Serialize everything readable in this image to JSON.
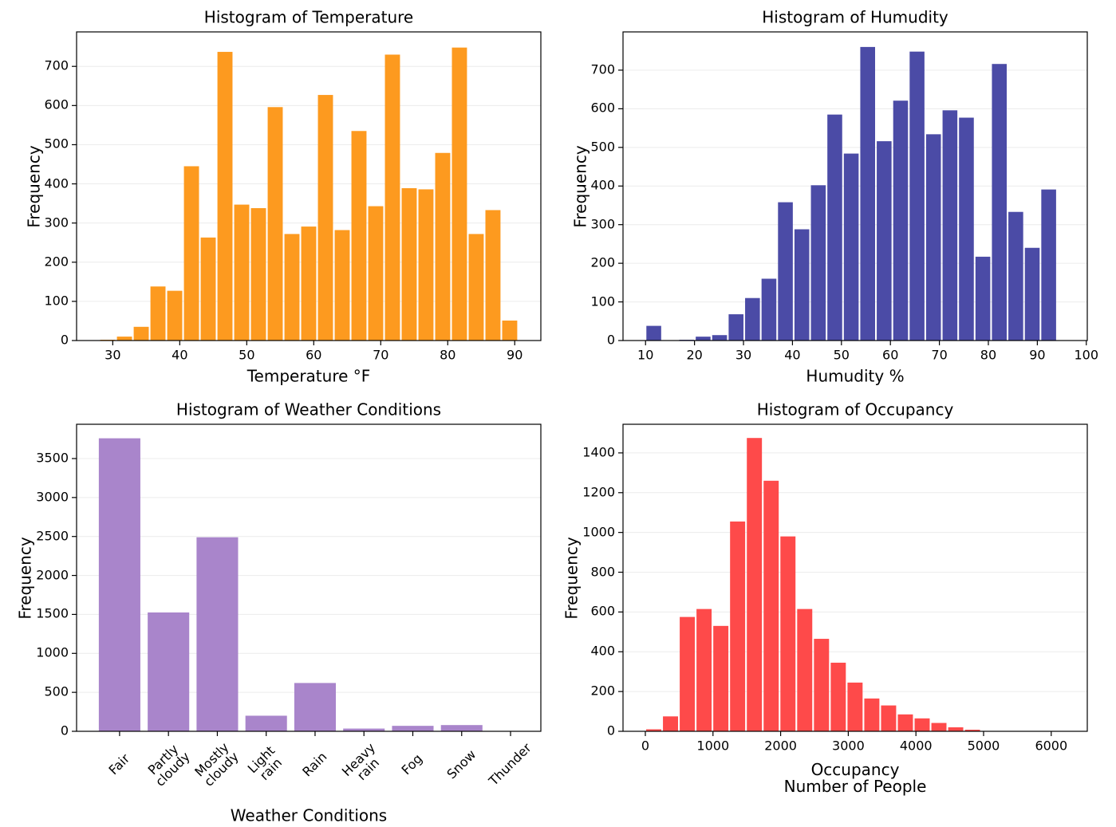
{
  "chart_data": [
    {
      "type": "histogram",
      "title": "Histogram of Temperature",
      "xlabel": "Temperature °F",
      "ylabel": "Frequency",
      "color": "#fd9a1f",
      "grid": true,
      "bins": [
        28,
        30.5,
        33,
        35.5,
        38,
        40.5,
        43,
        45.5,
        48,
        50.5,
        53,
        55.5,
        58,
        60.5,
        63,
        65.5,
        68,
        70.5,
        73,
        75.5,
        78,
        80.5,
        83,
        85.5,
        88,
        90.5
      ],
      "values": [
        2,
        10,
        35,
        138,
        127,
        445,
        263,
        737,
        347,
        338,
        596,
        272,
        291,
        627,
        282,
        535,
        343,
        730,
        389,
        386,
        479,
        748,
        272,
        333,
        51
      ],
      "xlim": [
        24.6,
        93.9
      ],
      "xticks": [
        30,
        40,
        50,
        60,
        70,
        80,
        90
      ],
      "ylim": [
        0,
        788
      ],
      "yticks": [
        0,
        100,
        200,
        300,
        400,
        500,
        600,
        700
      ]
    },
    {
      "type": "histogram",
      "title": "Histogram of Humudity",
      "xlabel": "Humudity %",
      "ylabel": "Frequency",
      "color": "#4b4ba6",
      "grid": true,
      "bins": [
        10,
        13.36,
        16.72,
        20.08,
        23.44,
        26.8,
        30.16,
        33.52,
        36.88,
        40.24,
        43.6,
        46.96,
        50.32,
        53.68,
        57.04,
        60.4,
        63.76,
        67.12,
        70.48,
        73.84,
        77.2,
        80.56,
        83.92,
        87.28,
        90.64,
        94.0
      ],
      "values": [
        38,
        0,
        2,
        10,
        14,
        68,
        110,
        160,
        358,
        288,
        402,
        585,
        484,
        760,
        516,
        621,
        748,
        534,
        596,
        577,
        217,
        716,
        333,
        240,
        391
      ],
      "xlim": [
        5.4,
        100.2
      ],
      "xticks": [
        10,
        20,
        30,
        40,
        50,
        60,
        70,
        80,
        90,
        100
      ],
      "ylim": [
        0,
        799
      ],
      "yticks": [
        0,
        100,
        200,
        300,
        400,
        500,
        600,
        700
      ]
    },
    {
      "type": "bar",
      "title": "Histogram of Weather Conditions",
      "xlabel": "Weather Conditions",
      "ylabel": "Frequency",
      "color": "#a985cb",
      "grid": true,
      "categories": [
        "Fair",
        "Partly\ncloudy",
        "Mostly\ncloudy",
        "Light\nrain",
        "Rain",
        "Heavy\nrain",
        "Fog",
        "Snow",
        "Thunder"
      ],
      "values": [
        3760,
        1525,
        2490,
        200,
        620,
        35,
        70,
        80,
        2
      ],
      "ylim": [
        0,
        3940
      ],
      "yticks": [
        0,
        500,
        1000,
        1500,
        2000,
        2500,
        3000,
        3500
      ]
    },
    {
      "type": "histogram",
      "title": "Histogram of Occupancy",
      "xlabel": "Occupancy\nNumber of People",
      "ylabel": "Frequency",
      "color": "#fe4a4a",
      "grid": true,
      "bins": [
        0,
        248,
        496,
        744,
        992,
        1240,
        1488,
        1736,
        1984,
        2232,
        2480,
        2728,
        2976,
        3224,
        3472,
        3720,
        3968,
        4216,
        4464,
        4712,
        4960,
        5208,
        5456,
        5704,
        5952,
        6200
      ],
      "values": [
        10,
        75,
        575,
        615,
        530,
        1055,
        1475,
        1260,
        980,
        615,
        465,
        345,
        245,
        165,
        130,
        85,
        65,
        42,
        20,
        8,
        1,
        0,
        0,
        0,
        0
      ],
      "xlim": [
        -330,
        6533
      ],
      "xticks": [
        0,
        1000,
        2000,
        3000,
        4000,
        5000,
        6000
      ],
      "ylim": [
        0,
        1544
      ],
      "yticks": [
        0,
        200,
        400,
        600,
        800,
        1000,
        1200,
        1400
      ]
    }
  ]
}
